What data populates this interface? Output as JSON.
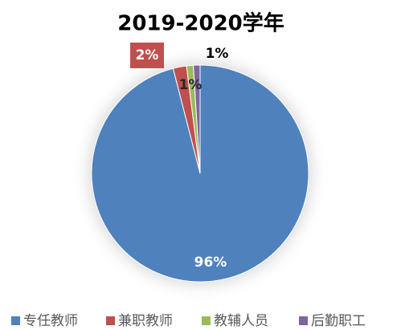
{
  "chart_data": {
    "type": "pie",
    "title": "2019-2020学年",
    "categories": [
      "专任教师",
      "兼职教师",
      "教辅人员",
      "后勤职工"
    ],
    "values": [
      96,
      2,
      1,
      1
    ],
    "value_labels": [
      "96%",
      "2%",
      "1%",
      "1%"
    ],
    "colors": [
      "#4f81bd",
      "#c0504d",
      "#9bbb59",
      "#8064a2"
    ],
    "legend": "bottom"
  }
}
